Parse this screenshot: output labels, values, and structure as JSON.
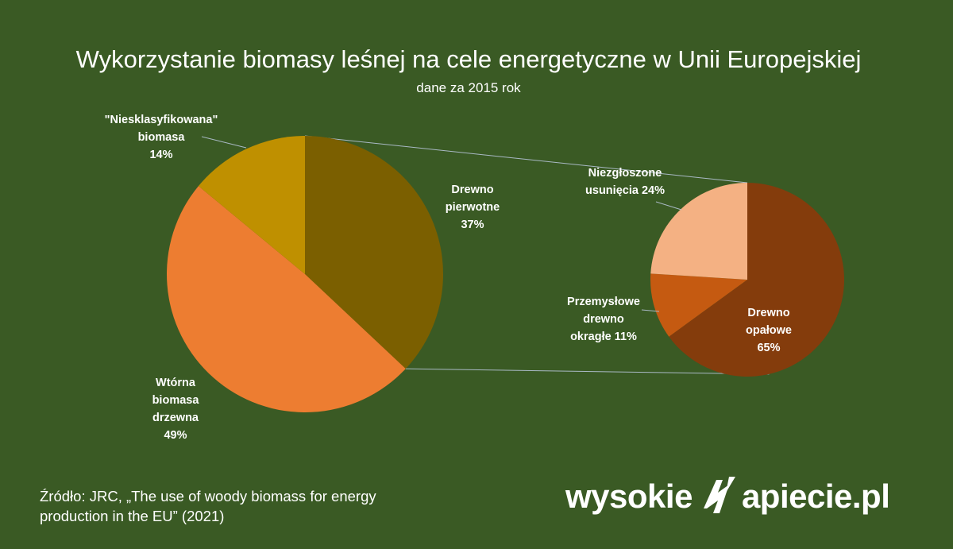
{
  "title": "Wykorzystanie biomasy leśnej na cele energetyczne w Unii Europejskiej",
  "subtitle": "dane za 2015 rok",
  "source": "Źródło: JRC, „The use of woody biomass for energy production in the EU” (2021)",
  "logo": {
    "left": "wysokie",
    "right": "apiecie.pl",
    "icon": "lightning-n-icon"
  },
  "colors": {
    "background": "#3a5a24",
    "drewno_pierwotne": "#7b5f00",
    "wtorna": "#ed7d31",
    "niesklasyfikowana": "#bf9000",
    "drewno_opalowe": "#843c0c",
    "przemyslowe": "#c55a11",
    "niezgloszone": "#f4b183",
    "connector": "#a9b9c5"
  },
  "chart_data": [
    {
      "type": "pie",
      "slices": [
        {
          "name": "Drewno pierwotne",
          "value": 37,
          "label_lines": [
            "Drewno",
            "pierwotne",
            "37%"
          ]
        },
        {
          "name": "Wtórna biomasa drzewna",
          "value": 49,
          "label_lines": [
            "Wtórna",
            "biomasa",
            "drzewna",
            "49%"
          ]
        },
        {
          "name": "\"Niesklasyfikowana\" biomasa",
          "value": 14,
          "label_lines": [
            "\"Niesklasyfikowana\"",
            "biomasa",
            "14%"
          ]
        }
      ]
    },
    {
      "type": "pie",
      "breakdown_of": "Drewno pierwotne",
      "slices": [
        {
          "name": "Drewno opałowe",
          "value": 65,
          "label_lines": [
            "Drewno",
            "opałowe",
            "65%"
          ]
        },
        {
          "name": "Przemysłowe drewno okragłe",
          "value": 11,
          "label_lines": [
            "Przemysłowe",
            "drewno",
            "okragłe  11%"
          ]
        },
        {
          "name": "Niezgłoszone usunięcia",
          "value": 24,
          "label_lines": [
            "Niezgłoszone",
            "usunięcia 24%"
          ]
        }
      ]
    }
  ]
}
